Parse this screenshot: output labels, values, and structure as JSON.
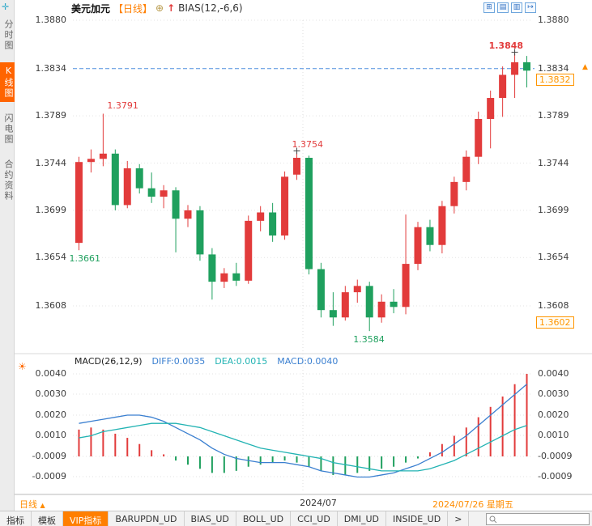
{
  "header": {
    "symbol": "美元加元",
    "period": "【日线】",
    "add_icon": "⊕",
    "trend_icon": "↑",
    "indicator_label": "BIAS(12,-6,6)",
    "window_icons": [
      {
        "name": "layout-grid-icon",
        "glyph": "⊞"
      },
      {
        "name": "layout-kline-icon",
        "glyph": "▤"
      },
      {
        "name": "layout-split-icon",
        "glyph": "▥"
      },
      {
        "name": "layout-expand-icon",
        "glyph": "↦"
      }
    ]
  },
  "sidebar": {
    "items": [
      {
        "label": "分时图",
        "active": false
      },
      {
        "label": "K线图",
        "active": true
      },
      {
        "label": "闪电图",
        "active": false
      },
      {
        "label": "合约资料",
        "active": false
      }
    ]
  },
  "price_axis": {
    "current_price_tag": "1.3832",
    "lower_tag": "1.3602",
    "marker": "▲"
  },
  "macd_panel": {
    "title": "MACD(26,12,9)",
    "diff_label": "DIFF:0.0035",
    "dea_label": "DEA:0.0015",
    "macd_label": "MACD:0.0040"
  },
  "timeline": {
    "month_label": "2024/07",
    "date_label": "2024/07/26 星期五",
    "period_tag": "日线",
    "period_tag_arrow": "▲"
  },
  "footer": {
    "tabs": [
      {
        "label": "指标",
        "active": false
      },
      {
        "label": "模板",
        "active": false
      },
      {
        "label": "VIP指标",
        "active": true
      },
      {
        "label": "BARUPDN_UD",
        "active": false
      },
      {
        "label": "BIAS_UD",
        "active": false
      },
      {
        "label": "BOLL_UD",
        "active": false
      },
      {
        "label": "CCI_UD",
        "active": false
      },
      {
        "label": "DMI_UD",
        "active": false
      },
      {
        "label": "INSIDE_UD",
        "active": false
      },
      {
        "label": ">",
        "active": false
      }
    ],
    "search_value": ""
  },
  "colors": {
    "up": "#e23b3b",
    "down": "#1fa05e",
    "accent_orange": "#ff7f00",
    "dashed_line": "#4f8fe0",
    "diff_line": "#3a7fd0",
    "dea_line": "#22b3b3",
    "grid": "#e3e3e3"
  },
  "chart_data": [
    {
      "type": "candlestick",
      "symbol": "美元加元",
      "period": "日线",
      "y_ticks": [
        "1.3880",
        "1.3834",
        "1.3789",
        "1.3744",
        "1.3699",
        "1.3654",
        "1.3608"
      ],
      "ylim": [
        1.357,
        1.388
      ],
      "dashed_line_price": 1.3834,
      "candles": [
        [
          1.3668,
          1.375,
          1.3661,
          1.3745
        ],
        [
          1.3745,
          1.3757,
          1.3735,
          1.3748
        ],
        [
          1.3748,
          1.3791,
          1.3741,
          1.3753
        ],
        [
          1.3753,
          1.3757,
          1.3699,
          1.3704
        ],
        [
          1.3704,
          1.3746,
          1.3701,
          1.3739
        ],
        [
          1.3739,
          1.3743,
          1.3715,
          1.372
        ],
        [
          1.372,
          1.3735,
          1.3706,
          1.3712
        ],
        [
          1.3712,
          1.3723,
          1.3701,
          1.3718
        ],
        [
          1.3718,
          1.3721,
          1.3659,
          1.3691
        ],
        [
          1.3691,
          1.3704,
          1.3683,
          1.3699
        ],
        [
          1.3699,
          1.3703,
          1.3651,
          1.3657
        ],
        [
          1.3657,
          1.3663,
          1.3614,
          1.3631
        ],
        [
          1.3631,
          1.3644,
          1.3625,
          1.3639
        ],
        [
          1.3639,
          1.3649,
          1.3627,
          1.3632
        ],
        [
          1.3632,
          1.3694,
          1.3629,
          1.3689
        ],
        [
          1.3689,
          1.3703,
          1.3679,
          1.3697
        ],
        [
          1.3697,
          1.3706,
          1.3669,
          1.3675
        ],
        [
          1.3675,
          1.3736,
          1.3671,
          1.3731
        ],
        [
          1.3733,
          1.3754,
          1.3728,
          1.3749
        ],
        [
          1.3749,
          1.3751,
          1.3638,
          1.3643
        ],
        [
          1.3643,
          1.3649,
          1.3597,
          1.3604
        ],
        [
          1.3604,
          1.3621,
          1.3589,
          1.3597
        ],
        [
          1.3597,
          1.3627,
          1.3594,
          1.3621
        ],
        [
          1.3621,
          1.3633,
          1.3611,
          1.3627
        ],
        [
          1.3627,
          1.3631,
          1.3584,
          1.3597
        ],
        [
          1.3597,
          1.3619,
          1.3592,
          1.3612
        ],
        [
          1.3612,
          1.3624,
          1.3601,
          1.3607
        ],
        [
          1.3607,
          1.3695,
          1.36,
          1.3648
        ],
        [
          1.3648,
          1.3688,
          1.3642,
          1.3683
        ],
        [
          1.3683,
          1.369,
          1.366,
          1.3666
        ],
        [
          1.3666,
          1.3708,
          1.3658,
          1.3703
        ],
        [
          1.3703,
          1.3731,
          1.3696,
          1.3726
        ],
        [
          1.3726,
          1.3756,
          1.3718,
          1.375
        ],
        [
          1.375,
          1.3793,
          1.3743,
          1.3786
        ],
        [
          1.3786,
          1.3813,
          1.3758,
          1.3806
        ],
        [
          1.3806,
          1.3836,
          1.3788,
          1.3828
        ],
        [
          1.3828,
          1.3848,
          1.3806,
          1.384
        ],
        [
          1.384,
          1.3846,
          1.3816,
          1.3832
        ]
      ],
      "annotations": [
        {
          "index": 0,
          "text": "1.3661",
          "pos": "below",
          "color": "down",
          "dx": -12,
          "marker": false,
          "bold": false
        },
        {
          "index": 2,
          "text": "1.3791",
          "pos": "above",
          "color": "up",
          "dx": 5,
          "marker": false,
          "bold": false
        },
        {
          "index": 18,
          "text": "1.3754",
          "pos": "above",
          "color": "up",
          "dx": -6,
          "marker": true,
          "bold": false
        },
        {
          "index": 24,
          "text": "1.3584",
          "pos": "below",
          "color": "down",
          "dx": -20,
          "marker": false,
          "bold": false
        },
        {
          "index": 36,
          "text": "1.3848",
          "pos": "above",
          "color": "up",
          "dx": -32,
          "marker": true,
          "bold": true
        }
      ]
    },
    {
      "type": "macd",
      "title": "MACD(26,12,9)",
      "y_ticks": [
        "0.0040",
        "0.0030",
        "0.0020",
        "0.0010",
        "-0.0009",
        "-0.0009"
      ],
      "diff": [
        0.0016,
        0.0017,
        0.0018,
        0.0019,
        0.002,
        0.002,
        0.0019,
        0.0017,
        0.0014,
        0.0011,
        0.0008,
        0.0004,
        0.0001,
        -0.0001,
        -0.0002,
        -0.0003,
        -0.0003,
        -0.0003,
        -0.0004,
        -0.0005,
        -0.0007,
        -0.0008,
        -0.0009,
        -0.001,
        -0.001,
        -0.0009,
        -0.0008,
        -0.0006,
        -0.0004,
        -0.0001,
        0.0002,
        0.0006,
        0.001,
        0.0015,
        0.002,
        0.0025,
        0.003,
        0.0035
      ],
      "dea": [
        0.0009,
        0.001,
        0.0012,
        0.0013,
        0.0014,
        0.0015,
        0.0016,
        0.0016,
        0.0016,
        0.0015,
        0.0014,
        0.0012,
        0.001,
        0.0008,
        0.0006,
        0.0004,
        0.0003,
        0.0002,
        0.0001,
        0.0,
        -0.0001,
        -0.0003,
        -0.0004,
        -0.0005,
        -0.0006,
        -0.0007,
        -0.0007,
        -0.0007,
        -0.0007,
        -0.0006,
        -0.0004,
        -0.0002,
        0.0001,
        0.0004,
        0.0007,
        0.001,
        0.0013,
        0.0015
      ],
      "hist": [
        0.0013,
        0.0014,
        0.0013,
        0.0011,
        0.0009,
        0.0006,
        0.0003,
        0.0001,
        -0.0002,
        -0.0004,
        -0.0006,
        -0.0008,
        -0.0008,
        -0.0007,
        -0.0005,
        -0.0004,
        -0.0003,
        -0.0002,
        -0.0003,
        -0.0005,
        -0.0007,
        -0.0009,
        -0.0009,
        -0.0008,
        -0.0007,
        -0.0006,
        -0.0005,
        -0.0003,
        -0.0001,
        0.0002,
        0.0006,
        0.001,
        0.0014,
        0.0019,
        0.0024,
        0.0029,
        0.0035,
        0.004
      ]
    }
  ]
}
